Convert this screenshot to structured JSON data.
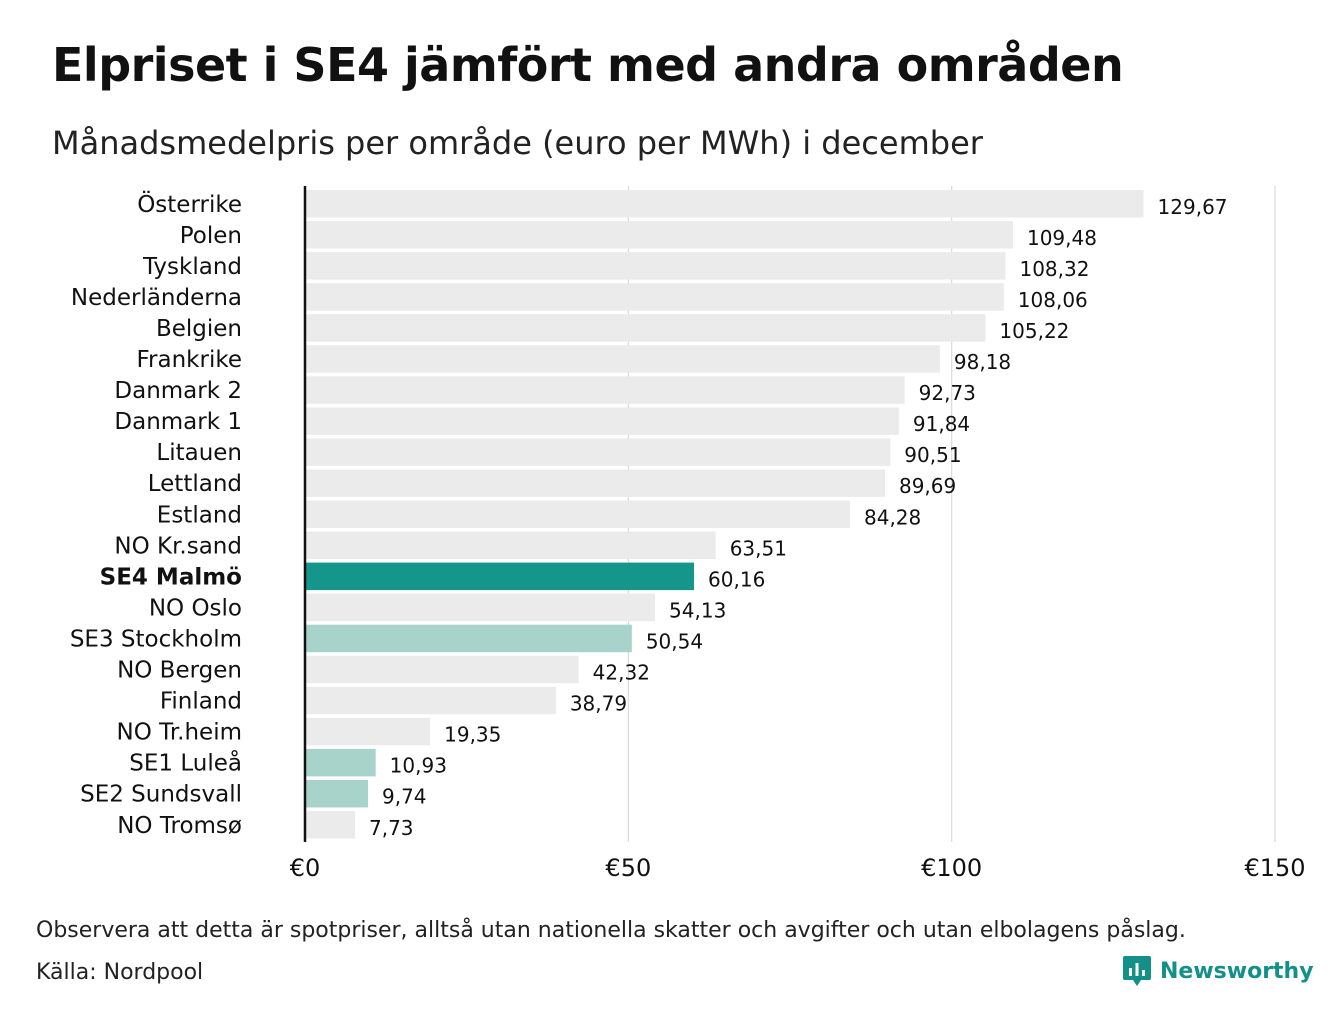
{
  "title": "Elpriset i SE4 jämfört med andra områden",
  "subtitle": "Månadsmedelpris per område (euro per MWh) i december",
  "note": "Observera att detta är spotpriser, alltså utan nationella skatter och avgifter och utan elbolagens påslag.",
  "source": "Källa: Nordpool",
  "brand": {
    "name": "Newsworthy",
    "icon": "newsworthy-logo-icon",
    "color": "#14908a"
  },
  "colors": {
    "default": "#ebebeb",
    "highlight": "#15968a",
    "se_other": "#a8d3ca",
    "axis": "#111111",
    "grid": "#d9d9d9"
  },
  "chart_data": {
    "type": "bar",
    "orientation": "horizontal",
    "categories": [
      "Österrike",
      "Polen",
      "Tyskland",
      "Nederländerna",
      "Belgien",
      "Frankrike",
      "Danmark  2",
      "Danmark  1",
      "Litauen",
      "Lettland",
      "Estland",
      "NO Kr.sand",
      "SE4 Malmö",
      "NO Oslo",
      "SE3  Stockholm",
      "NO Bergen",
      "Finland",
      "NO Tr.heim",
      "SE1  Luleå",
      "SE2  Sundsvall",
      "NO Tromsø"
    ],
    "values": [
      129.67,
      109.48,
      108.32,
      108.06,
      105.22,
      98.18,
      92.73,
      91.84,
      90.51,
      89.69,
      84.28,
      63.51,
      60.16,
      54.13,
      50.54,
      42.32,
      38.79,
      19.35,
      10.93,
      9.74,
      7.73
    ],
    "value_labels": [
      "129,67",
      "109,48",
      "108,32",
      "108,06",
      "105,22",
      "98,18",
      "92,73",
      "91,84",
      "90,51",
      "89,69",
      "84,28",
      "63,51",
      "60,16",
      "54,13",
      "50,54",
      "42,32",
      "38,79",
      "19,35",
      "10,93",
      "9,74",
      "7,73"
    ],
    "bar_color_keys": [
      "default",
      "default",
      "default",
      "default",
      "default",
      "default",
      "default",
      "default",
      "default",
      "default",
      "default",
      "default",
      "highlight",
      "default",
      "se_other",
      "default",
      "default",
      "default",
      "se_other",
      "se_other",
      "default"
    ],
    "bold_categories": [
      "SE4 Malmö"
    ],
    "xlim": [
      0,
      150
    ],
    "xticks": [
      0,
      50,
      100,
      150
    ],
    "xtick_labels": [
      "€0",
      "€50",
      "€100",
      "€150"
    ],
    "grid": true
  }
}
